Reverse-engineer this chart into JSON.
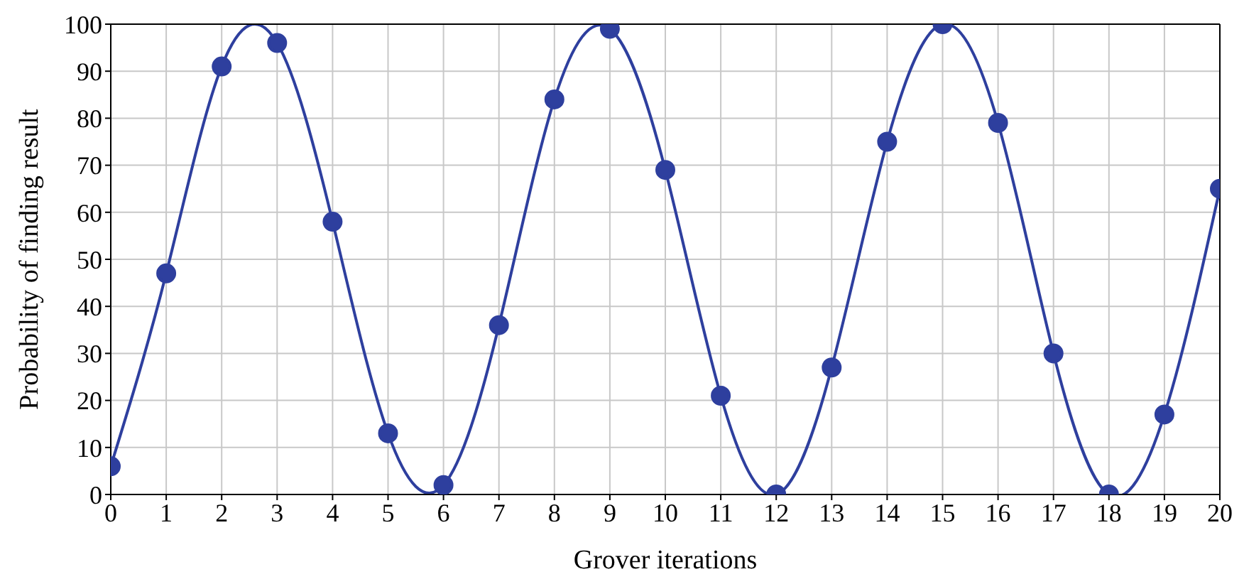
{
  "chart_data": {
    "type": "line",
    "xlabel": "Grover iterations",
    "ylabel": "Probability of finding result",
    "x": [
      0,
      1,
      2,
      3,
      4,
      5,
      6,
      7,
      8,
      9,
      10,
      11,
      12,
      13,
      14,
      15,
      16,
      17,
      18,
      19,
      20
    ],
    "series": [
      {
        "color": "#2e3f9e",
        "values": [
          6,
          47,
          91,
          96,
          58,
          13,
          2,
          36,
          84,
          99,
          69,
          21,
          0,
          27,
          75,
          100,
          79,
          30,
          0,
          17,
          65
        ]
      }
    ],
    "xlim": [
      0,
      20
    ],
    "xticks": [
      0,
      1,
      2,
      3,
      4,
      5,
      6,
      7,
      8,
      9,
      10,
      11,
      12,
      13,
      14,
      15,
      16,
      17,
      18,
      19,
      20
    ],
    "ylim": [
      0,
      100
    ],
    "yticks": [
      0,
      10,
      20,
      30,
      40,
      50,
      60,
      70,
      80,
      90,
      100
    ],
    "grid": true,
    "marker": "circle",
    "line_style": "solid",
    "legend": false
  }
}
